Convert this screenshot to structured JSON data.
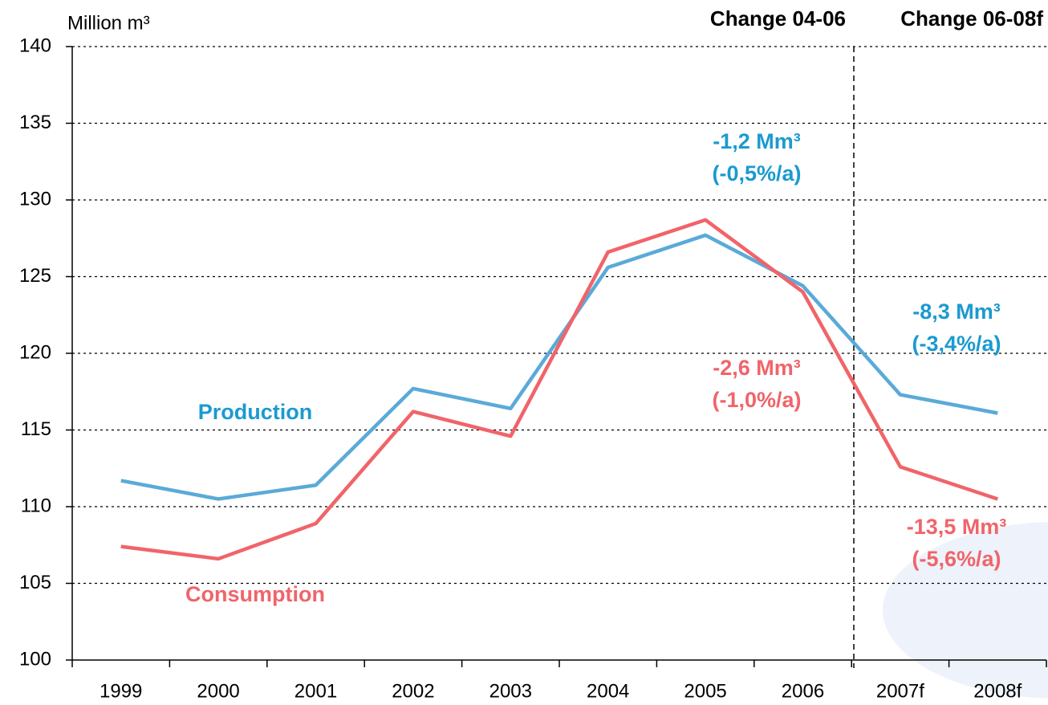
{
  "chart_data": {
    "type": "line",
    "y_axis_label": "Million m³",
    "column_headers": [
      "Change 04-06",
      "Change 06-08f"
    ],
    "categories": [
      "1999",
      "2000",
      "2001",
      "2002",
      "2003",
      "2004",
      "2005",
      "2006",
      "2007f",
      "2008f"
    ],
    "series": [
      {
        "name": "Production",
        "color": "#5aaad8",
        "label_color": "#1b9ad0",
        "values": [
          111.7,
          110.5,
          111.4,
          117.7,
          116.4,
          125.6,
          127.7,
          124.4,
          117.3,
          116.1
        ]
      },
      {
        "name": "Consumption",
        "color": "#f0646a",
        "label_color": "#f0646a",
        "values": [
          107.4,
          106.6,
          108.9,
          116.2,
          114.6,
          126.6,
          128.7,
          124.0,
          112.6,
          110.5
        ]
      }
    ],
    "annotations": [
      {
        "lines": [
          "-1,2 Mm³",
          "(-0,5%/a)"
        ],
        "color": "#1b9ad0"
      },
      {
        "lines": [
          "-2,6 Mm³",
          "(-1,0%/a)"
        ],
        "color": "#f0646a"
      },
      {
        "lines": [
          "-8,3 Mm³",
          "(-3,4%/a)"
        ],
        "color": "#1b9ad0"
      },
      {
        "lines": [
          "-13,5 Mm³",
          "(-5,6%/a)"
        ],
        "color": "#f0646a"
      }
    ],
    "ylim": [
      100,
      140
    ],
    "yticks": [
      100,
      105,
      110,
      115,
      120,
      125,
      130,
      135,
      140
    ],
    "grid": true
  }
}
